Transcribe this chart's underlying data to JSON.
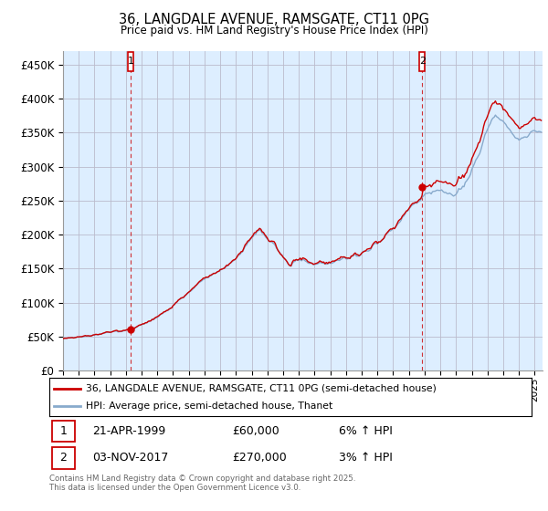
{
  "title_line1": "36, LANGDALE AVENUE, RAMSGATE, CT11 0PG",
  "title_line2": "Price paid vs. HM Land Registry's House Price Index (HPI)",
  "ylabel_ticks": [
    "£0",
    "£50K",
    "£100K",
    "£150K",
    "£200K",
    "£250K",
    "£300K",
    "£350K",
    "£400K",
    "£450K"
  ],
  "ytick_values": [
    0,
    50000,
    100000,
    150000,
    200000,
    250000,
    300000,
    350000,
    400000,
    450000
  ],
  "ylim": [
    0,
    470000
  ],
  "xlim_start": 1995.0,
  "xlim_end": 2025.5,
  "xtick_years": [
    1995,
    1996,
    1997,
    1998,
    1999,
    2000,
    2001,
    2002,
    2003,
    2004,
    2005,
    2006,
    2007,
    2008,
    2009,
    2010,
    2011,
    2012,
    2013,
    2014,
    2015,
    2016,
    2017,
    2018,
    2019,
    2020,
    2021,
    2022,
    2023,
    2024,
    2025
  ],
  "red_line_color": "#cc0000",
  "blue_line_color": "#88aacc",
  "plot_bg_color": "#ddeeff",
  "marker1_x": 1999.3,
  "marker1_y": 60000,
  "marker2_x": 2017.85,
  "marker2_y": 270000,
  "legend_label1": "36, LANGDALE AVENUE, RAMSGATE, CT11 0PG (semi-detached house)",
  "legend_label2": "HPI: Average price, semi-detached house, Thanet",
  "annotation1_date": "21-APR-1999",
  "annotation1_price": "£60,000",
  "annotation1_hpi": "6% ↑ HPI",
  "annotation2_date": "03-NOV-2017",
  "annotation2_price": "£270,000",
  "annotation2_hpi": "3% ↑ HPI",
  "footer": "Contains HM Land Registry data © Crown copyright and database right 2025.\nThis data is licensed under the Open Government Licence v3.0.",
  "background_color": "#ffffff",
  "grid_color": "#bbbbcc"
}
